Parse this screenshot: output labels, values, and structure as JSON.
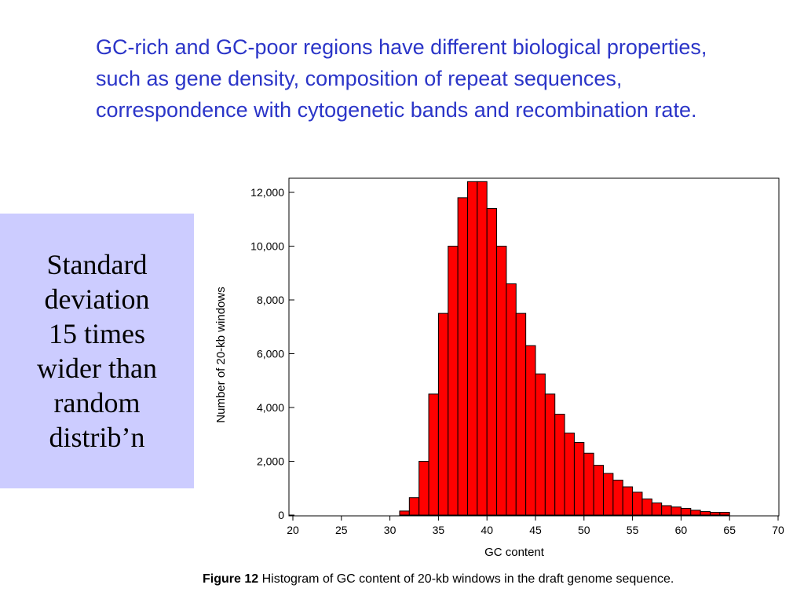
{
  "slide": {
    "heading": "GC-rich and GC-poor regions have different biological properties, such as gene density, composition of repeat sequences, correspondence with cytogenetic bands and recombination rate.",
    "side_lines": [
      "Standard",
      "deviation",
      "15 times",
      "wider than",
      "random",
      "distrib’n"
    ],
    "caption_label": "Figure 12",
    "caption_text": " Histogram of GC content of 20-kb windows in the draft genome sequence."
  },
  "colors": {
    "heading": "#2b35c8",
    "side_box": "#ccccff",
    "bar_fill": "#ff0000",
    "bar_stroke": "#000000"
  },
  "chart_data": {
    "type": "bar",
    "title": "",
    "xlabel": "GC content",
    "ylabel": "Number of 20-kb windows",
    "xlim": [
      20,
      70
    ],
    "ylim": [
      0,
      12000
    ],
    "bin_width": 1,
    "x_ticks": [
      20,
      25,
      30,
      35,
      40,
      45,
      50,
      55,
      60,
      65,
      70
    ],
    "y_ticks": [
      0,
      2000,
      4000,
      6000,
      8000,
      10000,
      12000
    ],
    "y_tick_labels": [
      "0",
      "2,000",
      "4,000",
      "6,000",
      "8,000",
      "10,000",
      "12,000"
    ],
    "bin_starts": [
      31,
      32,
      33,
      34,
      35,
      36,
      37,
      38,
      39,
      40,
      41,
      42,
      43,
      44,
      45,
      46,
      47,
      48,
      49,
      50,
      51,
      52,
      53,
      54,
      55,
      56,
      57,
      58,
      59,
      60,
      61,
      62,
      63,
      64
    ],
    "values": [
      150,
      650,
      2000,
      4500,
      7500,
      10000,
      11800,
      12400,
      12400,
      11400,
      10000,
      8600,
      7500,
      6300,
      5250,
      4500,
      3750,
      3050,
      2700,
      2300,
      1850,
      1550,
      1300,
      1050,
      850,
      600,
      450,
      350,
      300,
      250,
      180,
      130,
      100,
      100
    ],
    "grid": false,
    "legend": "none"
  }
}
